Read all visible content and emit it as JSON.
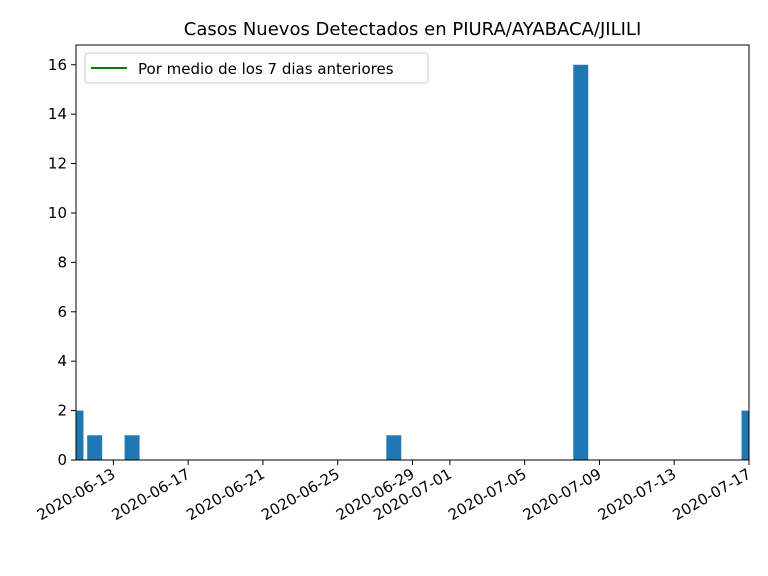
{
  "chart_data": {
    "type": "bar",
    "title": "Casos Nuevos Detectados en PIURA/AYABACA/JILILI",
    "xlabel": "",
    "ylabel": "",
    "x_axis_type": "date",
    "x_range": [
      "2020-06-11",
      "2020-07-17"
    ],
    "ylim": [
      0,
      16.8
    ],
    "yticks": [
      0,
      2,
      4,
      6,
      8,
      10,
      12,
      14,
      16
    ],
    "xticks": [
      "2020-06-13",
      "2020-06-17",
      "2020-06-21",
      "2020-06-25",
      "2020-06-29",
      "2020-07-01",
      "2020-07-05",
      "2020-07-09",
      "2020-07-13",
      "2020-07-17"
    ],
    "x_tick_rotation_deg": 30,
    "bar_color": "#1f77b4",
    "grid": false,
    "legend": {
      "location": "top-left",
      "entries": [
        {
          "label": "Por medio de los 7 dias anteriores",
          "color": "#008000",
          "marker": "line"
        }
      ]
    },
    "series": [
      {
        "x": [
          "2020-06-11",
          "2020-06-12",
          "2020-06-14",
          "2020-06-28",
          "2020-07-08",
          "2020-07-17"
        ],
        "values": [
          2,
          1,
          1,
          1,
          16,
          2
        ]
      }
    ]
  }
}
